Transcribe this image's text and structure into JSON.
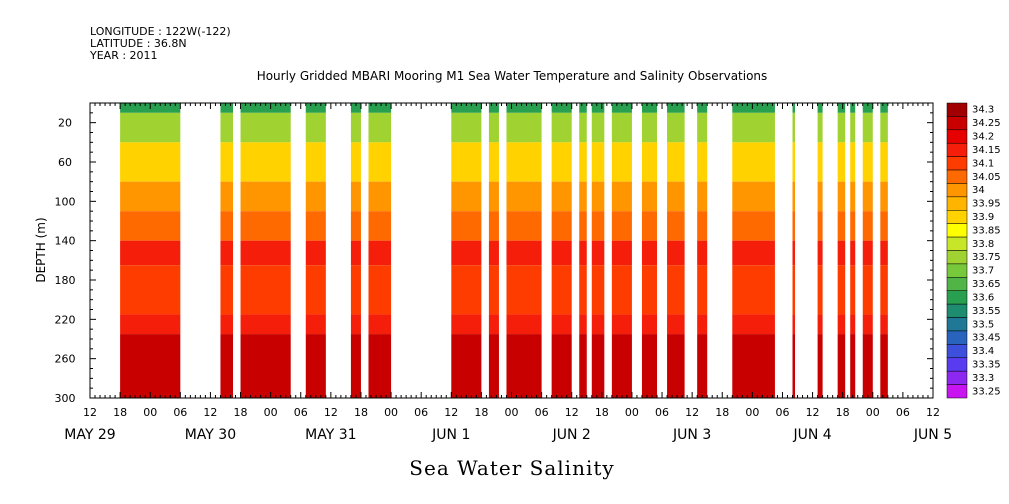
{
  "header": {
    "longitude": "LONGITUDE : 122W(-122)",
    "latitude": "LATITUDE : 36.8N",
    "year": "YEAR : 2011"
  },
  "chart_data": {
    "type": "heatmap",
    "title": "Hourly Gridded MBARI Mooring M1 Sea Water Temperature and Salinity Observations",
    "xlabel": "Sea Water Salinity",
    "ylabel": "DEPTH (m)",
    "x_unit": "hours since 2011-05-29 12:00",
    "xlim": [
      0,
      168
    ],
    "ylim": [
      300,
      0
    ],
    "y_ticks": [
      20,
      60,
      100,
      140,
      180,
      220,
      260,
      300
    ],
    "hour_tick_labels": [
      "12",
      "18",
      "00",
      "06",
      "12",
      "18",
      "00",
      "06",
      "12",
      "18",
      "00",
      "06",
      "12",
      "18",
      "00",
      "06",
      "12",
      "18",
      "00",
      "06",
      "12",
      "18",
      "00",
      "06",
      "12",
      "18",
      "00",
      "06",
      "12"
    ],
    "day_labels": [
      {
        "label": "MAY 29",
        "hour": 0
      },
      {
        "label": "MAY 30",
        "hour": 24
      },
      {
        "label": "MAY 31",
        "hour": 48
      },
      {
        "label": "JUN  1",
        "hour": 72
      },
      {
        "label": "JUN  2",
        "hour": 96
      },
      {
        "label": "JUN  3",
        "hour": 120
      },
      {
        "label": "JUN  4",
        "hour": 144
      },
      {
        "label": "JUN  5",
        "hour": 168
      }
    ],
    "colorbar": {
      "levels": [
        "34.3",
        "34.25",
        "34.2",
        "34.15",
        "34.1",
        "34.05",
        "34",
        "33.95",
        "33.9",
        "33.85",
        "33.8",
        "33.75",
        "33.7",
        "33.65",
        "33.6",
        "33.55",
        "33.5",
        "33.45",
        "33.4",
        "33.35",
        "33.3",
        "33.25"
      ],
      "colors": [
        "#a00000",
        "#c80000",
        "#e60000",
        "#f51e0a",
        "#ff3c00",
        "#ff6a00",
        "#ff9600",
        "#ffb400",
        "#ffd200",
        "#ffff00",
        "#c8e628",
        "#a0d232",
        "#78c83c",
        "#50b446",
        "#28a050",
        "#1e8c6e",
        "#1e7896",
        "#2864be",
        "#3c50dc",
        "#5a3cf0",
        "#8c28f0",
        "#c814f0"
      ]
    },
    "profile": [
      {
        "depth_range": [
          0,
          10
        ],
        "salinity": 33.6
      },
      {
        "depth_range": [
          10,
          40
        ],
        "salinity": 33.75
      },
      {
        "depth_range": [
          40,
          80
        ],
        "salinity": 33.9
      },
      {
        "depth_range": [
          80,
          110
        ],
        "salinity": 34.0
      },
      {
        "depth_range": [
          110,
          140
        ],
        "salinity": 34.05
      },
      {
        "depth_range": [
          140,
          165
        ],
        "salinity": 34.15
      },
      {
        "depth_range": [
          165,
          215
        ],
        "salinity": 34.1
      },
      {
        "depth_range": [
          215,
          235
        ],
        "salinity": 34.15
      },
      {
        "depth_range": [
          235,
          300
        ],
        "salinity": 34.25
      }
    ],
    "data_segments_hours": [
      [
        6,
        18
      ],
      [
        26,
        28.5
      ],
      [
        30,
        40
      ],
      [
        43,
        47
      ],
      [
        52,
        54
      ],
      [
        55.5,
        60
      ],
      [
        72,
        78
      ],
      [
        79.5,
        81.5
      ],
      [
        83,
        90
      ],
      [
        92,
        96
      ],
      [
        97.5,
        99
      ],
      [
        100,
        102.5
      ],
      [
        104,
        108
      ],
      [
        110,
        113
      ],
      [
        115,
        118.5
      ],
      [
        121,
        123
      ],
      [
        128,
        136.5
      ],
      [
        140,
        140.5
      ],
      [
        145,
        146
      ],
      [
        149,
        150.5
      ],
      [
        151.5,
        152.5
      ],
      [
        154,
        156
      ],
      [
        157.5,
        159
      ]
    ]
  }
}
